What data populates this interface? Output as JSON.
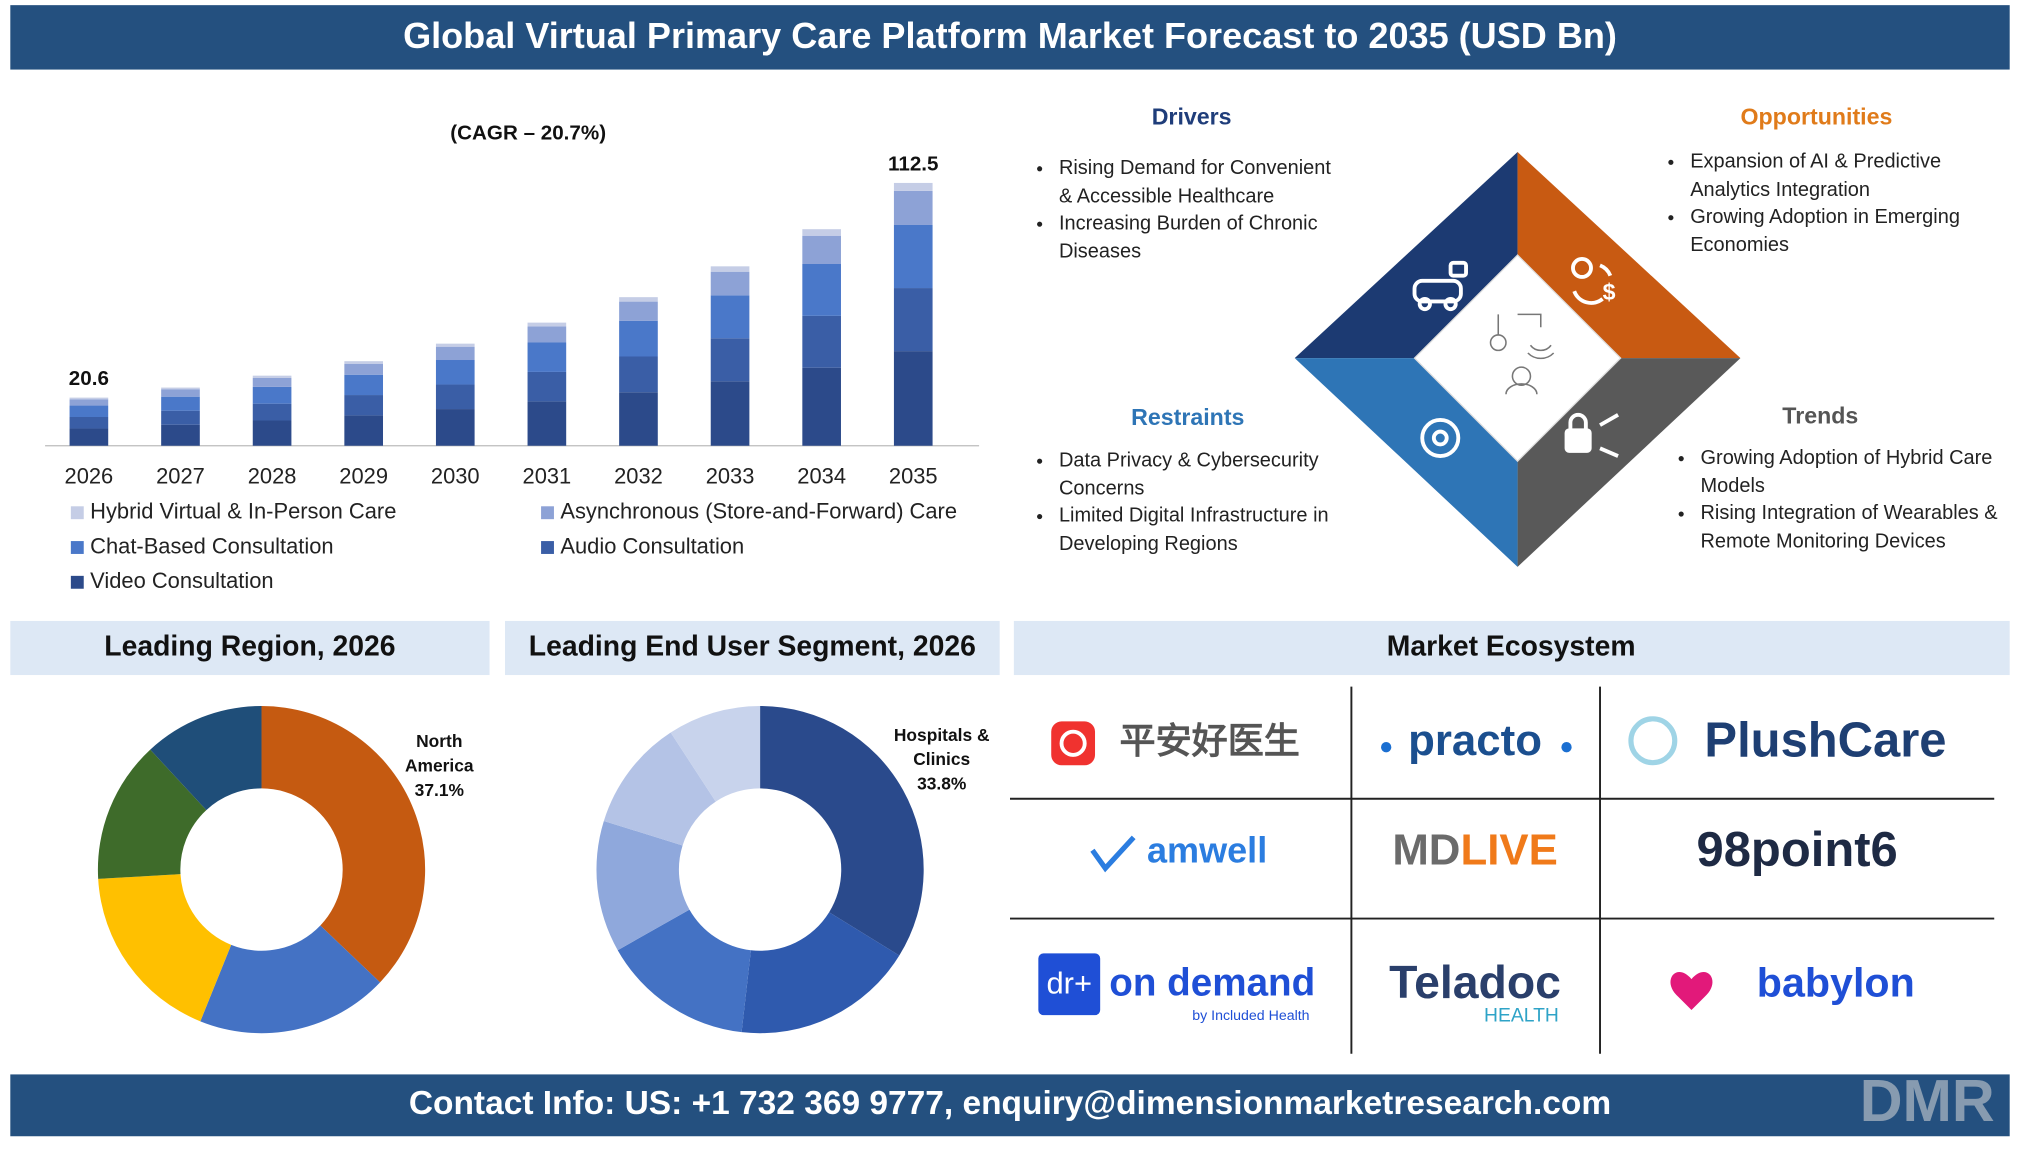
{
  "header": {
    "title": "Global Virtual Primary Care Platform Market Forecast to 2035 (USD Bn)"
  },
  "chart_data": [
    {
      "type": "stacked-bar",
      "annotation": "(CAGR – 20.7%)",
      "categories": [
        "2026",
        "2027",
        "2028",
        "2029",
        "2030",
        "2031",
        "2032",
        "2033",
        "2034",
        "2035"
      ],
      "total_labels": [
        20.6,
        null,
        null,
        null,
        null,
        null,
        null,
        null,
        null,
        112.5
      ],
      "series": [
        {
          "name": "Hybrid Virtual & In-Person Care",
          "color": "#c5cde6",
          "values": [
            0.7,
            0.7,
            0.9,
            1.1,
            1.3,
            1.6,
            1.9,
            2.3,
            2.8,
            3.4
          ]
        },
        {
          "name": "Asynchronous (Store-and-Forward) Care",
          "color": "#8da2d6",
          "values": [
            2.7,
            3.2,
            3.9,
            4.7,
            5.7,
            6.9,
            8.2,
            10.1,
            12.1,
            14.6
          ]
        },
        {
          "name": "Chat-Based Consultation",
          "color": "#4a78c9",
          "values": [
            4.9,
            6.0,
            7.2,
            8.7,
            10.5,
            12.6,
            15.3,
            18.4,
            22.2,
            27.0
          ]
        },
        {
          "name": "Audio Consultation",
          "color": "#3a5ea6",
          "values": [
            4.9,
            6.0,
            7.2,
            8.7,
            10.5,
            12.6,
            15.3,
            18.4,
            22.2,
            27.0
          ]
        },
        {
          "name": "Video Consultation",
          "color": "#2c4a8a",
          "values": [
            7.4,
            9.0,
            10.8,
            13.0,
            15.7,
            19.0,
            22.9,
            27.6,
            33.4,
            40.5
          ]
        }
      ]
    },
    {
      "type": "donut",
      "title": "Leading Region, 2026",
      "categories": [
        "North America",
        null,
        null,
        null,
        null
      ],
      "values": [
        37.1,
        19.0,
        18.0,
        14.0,
        11.9
      ],
      "value_labels": [
        "37.1%",
        null,
        null,
        null,
        null
      ],
      "colors": [
        "#c55a11",
        "#4472c4",
        "#ffc000",
        "#3e6b2a",
        "#1f4e79"
      ]
    },
    {
      "type": "donut",
      "title": "Leading End User Segment, 2026",
      "categories": [
        "Hospitals & Clinics",
        null,
        null,
        null,
        null,
        null
      ],
      "values": [
        33.8,
        18.0,
        15.0,
        13.0,
        11.0,
        9.2
      ],
      "value_labels": [
        "33.8%",
        null,
        null,
        null,
        null,
        null
      ],
      "colors": [
        "#2a4a8c",
        "#2f5aae",
        "#4472c4",
        "#8fa8dc",
        "#b4c3e6",
        "#c8d3ec"
      ]
    }
  ],
  "dynamics": {
    "drivers": {
      "title": "Drivers",
      "items": [
        "Rising Demand for Convenient & Accessible Healthcare",
        "Increasing Burden of Chronic Diseases"
      ]
    },
    "opportunities": {
      "title": "Opportunities",
      "items": [
        "Expansion of AI & Predictive Analytics Integration",
        "Growing Adoption in Emerging Economies"
      ]
    },
    "restraints": {
      "title": "Restraints",
      "items": [
        "Data Privacy & Cybersecurity Concerns",
        "Limited Digital Infrastructure in Developing Regions"
      ]
    },
    "trends": {
      "title": "Trends",
      "items": [
        "Growing Adoption of Hybrid Care Models",
        "Rising Integration of Wearables & Remote Monitoring Devices"
      ]
    }
  },
  "ecosystem": {
    "title": "Market Ecosystem",
    "companies": [
      {
        "name": "平安好医生"
      },
      {
        "name": "practo"
      },
      {
        "name": "PlushCare"
      },
      {
        "name": "amwell"
      },
      {
        "name": "MDLIVE"
      },
      {
        "name": "98point6"
      },
      {
        "icon": "dr+",
        "name": "on demand",
        "sub": "by Included Health"
      },
      {
        "name": "Teladoc",
        "sub": "HEALTH"
      },
      {
        "name": "babylon"
      }
    ]
  },
  "footer": {
    "contact": "Contact Info: US: +1 732 369 9777, enquiry@dimensionmarketresearch.com",
    "logo": "DMR"
  }
}
